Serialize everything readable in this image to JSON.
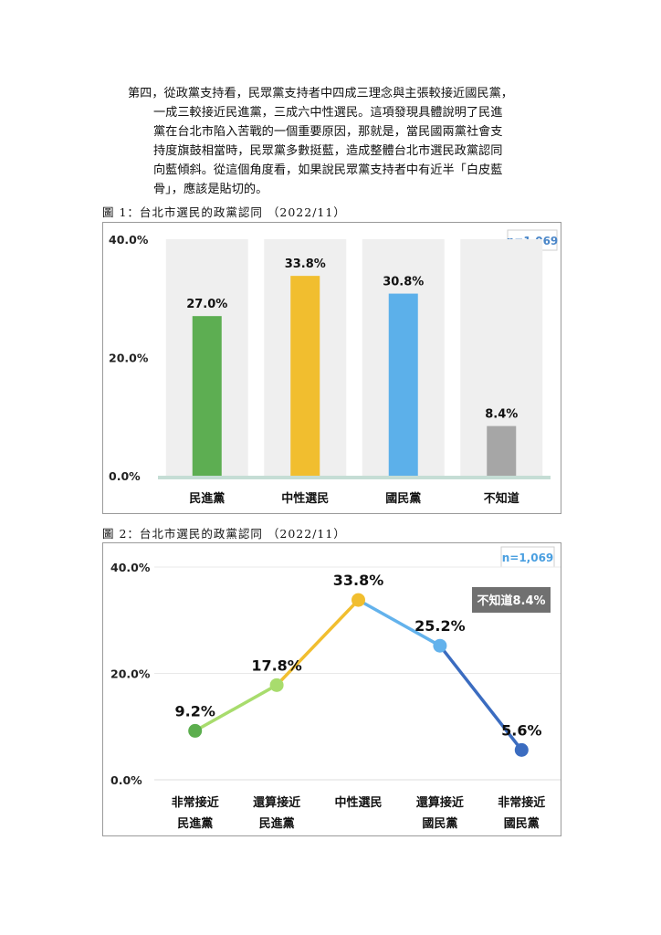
{
  "paragraph": {
    "lines": [
      "第四，從政黨支持看，民眾黨支持者中四成三理念與主張較接近國民黨，",
      "一成三較接近民進黨，三成六中性選民。這項發現具體說明了民進",
      "黨在台北市陷入苦戰的一個重要原因，那就是，當民國兩黨社會支",
      "持度旗鼓相當時，民眾黨多數挺藍，造成整體台北市選民政黨認同",
      "向藍傾斜。從這個角度看，如果說民眾黨支持者中有近半「白皮藍",
      "骨」，應該是貼切的。"
    ]
  },
  "figure1": {
    "caption": "圖 1：台北市選民的政黨認同 （2022/11）",
    "sample": "n=1,069"
  },
  "figure2": {
    "caption": "圖 2：台北市選民的政黨認同 （2022/11）",
    "sample": "n=1,069",
    "unknown_badge": "不知道8.4%"
  },
  "chart_data": [
    {
      "type": "bar",
      "title": "",
      "categories": [
        "民進黨",
        "中性選民",
        "國民黨",
        "不知道"
      ],
      "values": [
        27.0,
        33.8,
        30.8,
        8.4
      ],
      "value_labels": [
        "27.0%",
        "33.8%",
        "30.8%",
        "8.4%"
      ],
      "colors": [
        "#5dae52",
        "#f1be2f",
        "#5cb0ea",
        "#a6a6a6"
      ],
      "ylim": [
        0,
        40
      ],
      "yticks": [
        "0.0%",
        "20.0%",
        "40.0%"
      ],
      "grid": false
    },
    {
      "type": "line",
      "title": "",
      "categories": [
        "非常接近\n民進黨",
        "還算接近\n民進黨",
        "中性選民",
        "還算接近\n國民黨",
        "非常接近\n國民黨"
      ],
      "values": [
        9.2,
        17.8,
        33.8,
        25.2,
        5.6
      ],
      "value_labels": [
        "9.2%",
        "17.8%",
        "33.8%",
        "25.2%",
        "5.6%"
      ],
      "point_colors": [
        "#5cae4e",
        "#a8dc6d",
        "#f1be2f",
        "#63b2ec",
        "#3b6cc0"
      ],
      "segment_colors": [
        "#a8dc6d",
        "#f1be2f",
        "#63b2ec",
        "#3b6cc0"
      ],
      "ylim": [
        0,
        40
      ],
      "yticks": [
        "0.0%",
        "20.0%",
        "40.0%"
      ],
      "grid": true
    }
  ]
}
